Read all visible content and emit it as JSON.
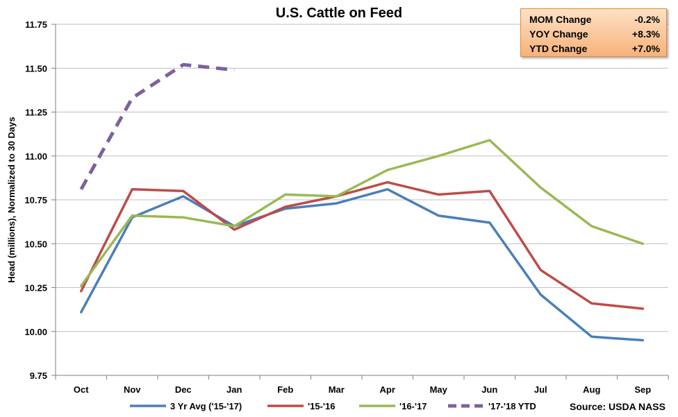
{
  "chart_data": {
    "type": "line",
    "title": "U.S. Cattle on Feed",
    "ylabel": "Head (millions), Normalized to 30 Days",
    "xlabel": "",
    "categories": [
      "Oct",
      "Nov",
      "Dec",
      "Jan",
      "Feb",
      "Mar",
      "Apr",
      "May",
      "Jun",
      "Jul",
      "Aug",
      "Sep"
    ],
    "ylim": [
      9.75,
      11.75
    ],
    "yticks": [
      "11.75",
      "11.50",
      "11.25",
      "11.00",
      "10.75",
      "10.50",
      "10.25",
      "10.00",
      "9.75"
    ],
    "ytick_values": [
      11.75,
      11.5,
      11.25,
      11.0,
      10.75,
      10.5,
      10.25,
      10.0,
      9.75
    ],
    "grid": "horizontal",
    "legend_position": "bottom",
    "series": [
      {
        "name": "3 Yr Avg ('15-'17)",
        "color": "#4a7ebb",
        "dash": false,
        "values": [
          10.11,
          10.65,
          10.77,
          10.6,
          10.7,
          10.73,
          10.81,
          10.66,
          10.62,
          10.21,
          9.97,
          9.95
        ]
      },
      {
        "name": "'15-'16",
        "color": "#be4b48",
        "dash": false,
        "values": [
          10.23,
          10.81,
          10.8,
          10.58,
          10.71,
          10.77,
          10.85,
          10.78,
          10.8,
          10.35,
          10.16,
          10.13
        ]
      },
      {
        "name": "'16-'17",
        "color": "#98b954",
        "dash": false,
        "values": [
          10.26,
          10.66,
          10.65,
          10.6,
          10.78,
          10.77,
          10.92,
          11.0,
          11.09,
          10.82,
          10.6,
          10.5
        ]
      },
      {
        "name": "'17-'18 YTD",
        "color": "#7d60a0",
        "dash": true,
        "values": [
          10.81,
          11.33,
          11.52,
          11.49,
          null,
          null,
          null,
          null,
          null,
          null,
          null,
          null
        ]
      }
    ],
    "source": "Source: USDA NASS"
  },
  "summary": {
    "rows": [
      {
        "label": "MOM Change",
        "value": "-0.2%"
      },
      {
        "label": "YOY Change",
        "value": "+8.3%"
      },
      {
        "label": "YTD Change",
        "value": "+7.0%"
      }
    ]
  }
}
